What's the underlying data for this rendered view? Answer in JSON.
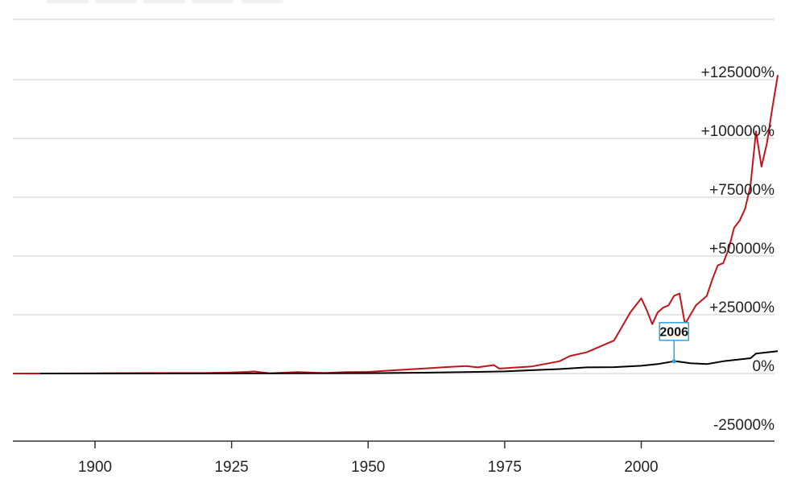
{
  "chart_data": {
    "type": "line",
    "title": "",
    "xlabel": "",
    "ylabel": "",
    "xlim": [
      1885,
      2025
    ],
    "ylim": [
      -25000,
      125000
    ],
    "x_ticks": [
      1900,
      1925,
      1950,
      1975,
      2000
    ],
    "x_tick_labels": [
      "1900",
      "1925",
      "1950",
      "1975",
      "2000"
    ],
    "y_ticks": [
      -25000,
      0,
      25000,
      50000,
      75000,
      100000,
      125000
    ],
    "y_tick_labels": [
      "-25000%",
      "0%",
      "+25000%",
      "+50000%",
      "+75000%",
      "+100000%",
      "+125000%"
    ],
    "grid": true,
    "series": [
      {
        "color": "#c0141c",
        "x": [
          1885,
          1890,
          1900,
          1910,
          1920,
          1925,
          1928,
          1929,
          1932,
          1937,
          1942,
          1946,
          1950,
          1955,
          1960,
          1965,
          1968,
          1970,
          1973,
          1974,
          1980,
          1985,
          1987,
          1990,
          1995,
          1998,
          2000,
          2001,
          2002,
          2003,
          2004,
          2005,
          2006,
          2007,
          2008,
          2009,
          2010,
          2012,
          2013,
          2014,
          2015,
          2016,
          2017,
          2018,
          2019,
          2020,
          2021,
          2022,
          2023,
          2024,
          2025
        ],
        "y": [
          0,
          0,
          100,
          200,
          200,
          400,
          700,
          900,
          100,
          600,
          200,
          600,
          700,
          1400,
          2100,
          2800,
          3200,
          2600,
          3600,
          2100,
          3000,
          5200,
          7500,
          9000,
          14000,
          26000,
          32000,
          27000,
          21000,
          26000,
          28000,
          29000,
          33000,
          34000,
          21000,
          25000,
          29000,
          33000,
          40000,
          46000,
          47000,
          53000,
          62000,
          65000,
          70000,
          80000,
          103000,
          88000,
          98000,
          113000,
          127000
        ]
      },
      {
        "color": "#000000",
        "x": [
          1890,
          1900,
          1925,
          1950,
          1960,
          1970,
          1975,
          1980,
          1985,
          1990,
          1995,
          2000,
          2003,
          2006,
          2007,
          2009,
          2012,
          2015,
          2018,
          2020,
          2021,
          2023,
          2025
        ],
        "y": [
          0,
          0,
          50,
          150,
          350,
          700,
          900,
          1400,
          1900,
          2600,
          2700,
          3300,
          4000,
          5200,
          5000,
          4400,
          4000,
          5200,
          6000,
          6500,
          8500,
          9000,
          9500
        ]
      }
    ],
    "annotations": [
      {
        "label": "2006",
        "x": 2006,
        "y": 5200,
        "color": "#29a3e0"
      }
    ]
  }
}
